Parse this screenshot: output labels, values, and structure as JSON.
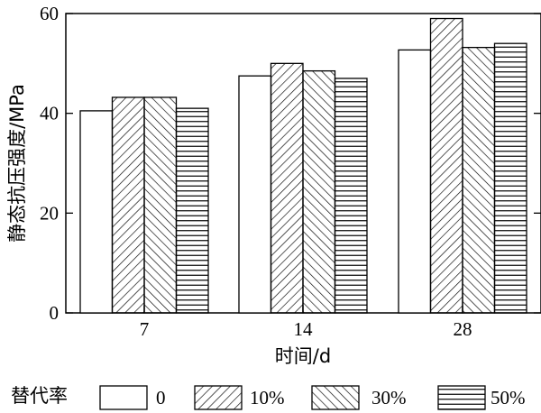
{
  "chart_data": {
    "type": "bar",
    "categories": [
      "7",
      "14",
      "28"
    ],
    "series": [
      {
        "name": "0",
        "pattern": "none",
        "values": [
          40.5,
          47.5,
          52.7
        ]
      },
      {
        "name": "10%",
        "pattern": "hatch-forward",
        "values": [
          43.2,
          50.0,
          59.0
        ]
      },
      {
        "name": "30%",
        "pattern": "hatch-backward",
        "values": [
          43.2,
          48.5,
          53.2
        ]
      },
      {
        "name": "50%",
        "pattern": "hatch-horizontal",
        "values": [
          41.0,
          47.0,
          54.0
        ]
      }
    ],
    "xlabel": "时间/d",
    "ylabel": "静态抗压强度/MPa",
    "ylim": [
      0,
      60
    ],
    "yticks": [
      0,
      20,
      40,
      60
    ],
    "grid": false,
    "legend": {
      "title": "替代率",
      "placement": "bottom"
    },
    "colors": {
      "stroke": "#000000",
      "fill": "#ffffff"
    }
  }
}
